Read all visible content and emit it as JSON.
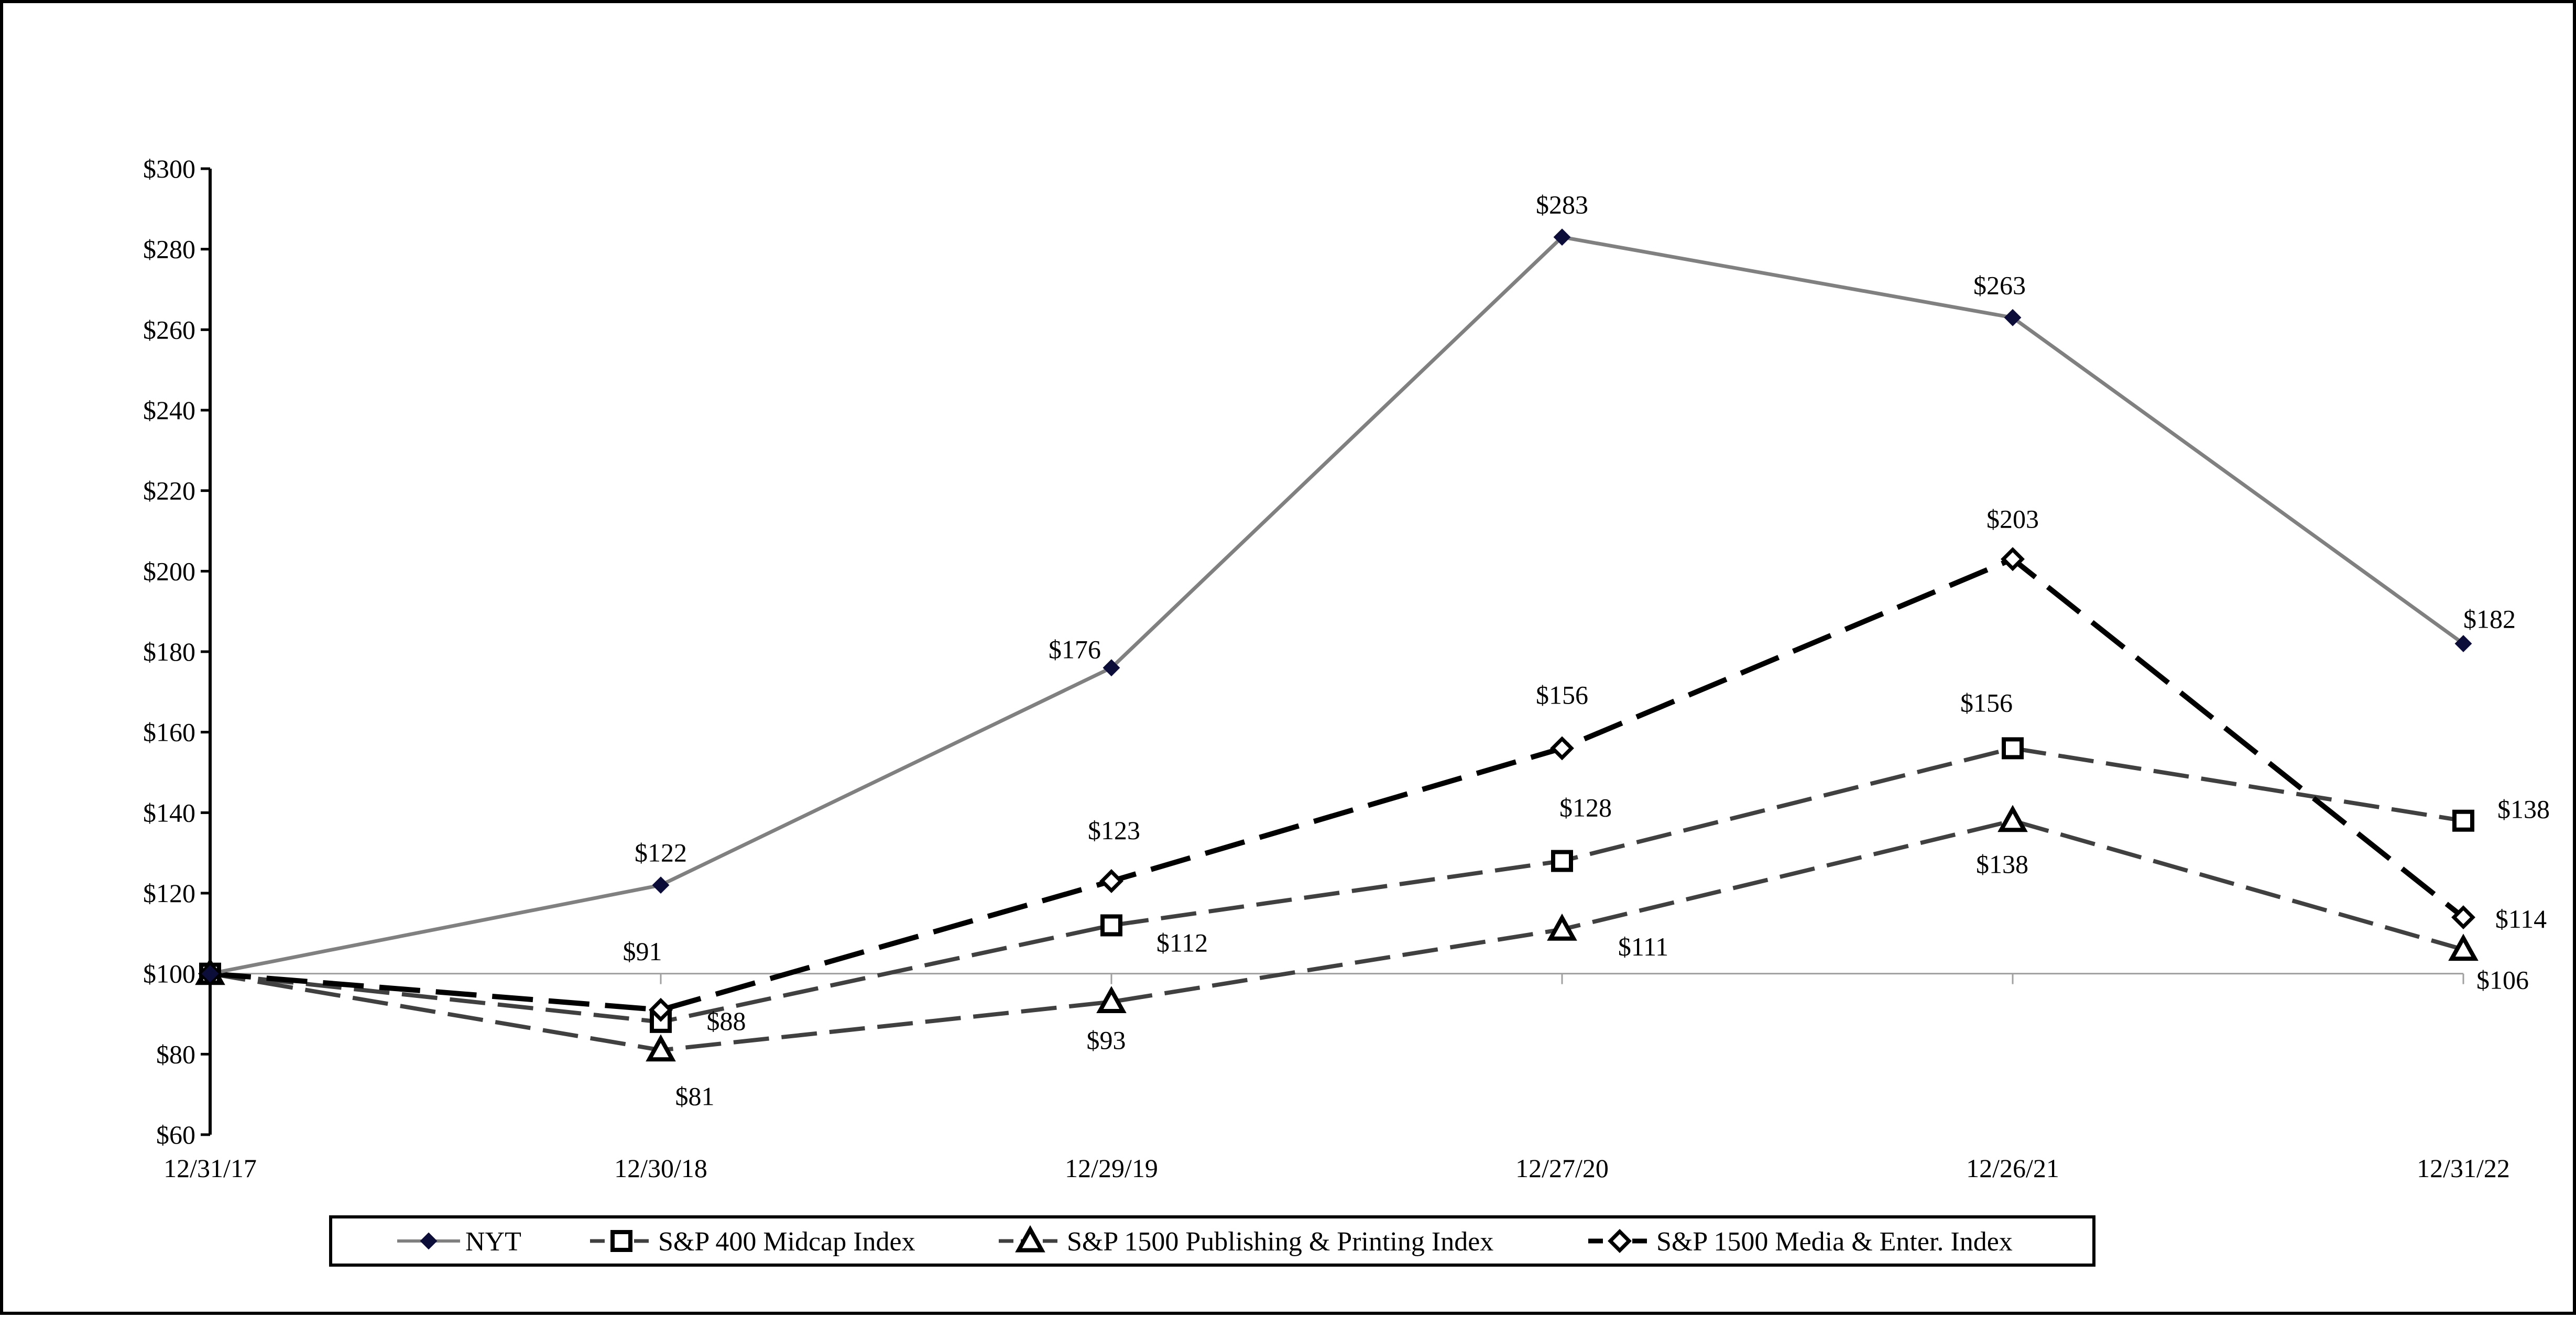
{
  "chart_data": {
    "type": "line",
    "title": "",
    "xlabel": "",
    "ylabel": "",
    "categories": [
      "12/31/17",
      "12/30/18",
      "12/29/19",
      "12/27/20",
      "12/26/21",
      "12/31/22"
    ],
    "ylim": [
      60,
      300
    ],
    "yticks": [
      60,
      80,
      100,
      120,
      140,
      160,
      180,
      200,
      220,
      240,
      260,
      280,
      300
    ],
    "ytick_labels": [
      "$60",
      "$80",
      "$100",
      "$120",
      "$140",
      "$160",
      "$180",
      "$200",
      "$220",
      "$240",
      "$260",
      "$280",
      "$300"
    ],
    "reference_line": 100,
    "grid": false,
    "legend_position": "bottom",
    "series": [
      {
        "name": "NYT",
        "values": [
          100,
          122,
          176,
          283,
          263,
          182
        ],
        "labels": [
          "",
          "$122",
          "$176",
          "$283",
          "$263",
          "$182"
        ],
        "color": "#808080",
        "marker": "filled-diamond",
        "dash": "solid"
      },
      {
        "name": "S&P 400 Midcap Index",
        "values": [
          100,
          88,
          112,
          128,
          156,
          138
        ],
        "labels": [
          "",
          "$88",
          "$112",
          "$128",
          "$156",
          "$138"
        ],
        "color": "#404040",
        "marker": "square",
        "dash": "dashed"
      },
      {
        "name": "S&P 1500 Publishing & Printing Index",
        "values": [
          100,
          81,
          93,
          111,
          138,
          106
        ],
        "labels": [
          "",
          "$81",
          "$93",
          "$111",
          "$138",
          "$106"
        ],
        "color": "#404040",
        "marker": "triangle",
        "dash": "dashed"
      },
      {
        "name": "S&P 1500 Media & Enter. Index",
        "values": [
          100,
          91,
          123,
          156,
          203,
          114
        ],
        "labels": [
          "",
          "$91",
          "$123",
          "$156",
          "$203",
          "$114"
        ],
        "color": "#000000",
        "marker": "diamond",
        "dash": "long-dashed"
      }
    ]
  }
}
